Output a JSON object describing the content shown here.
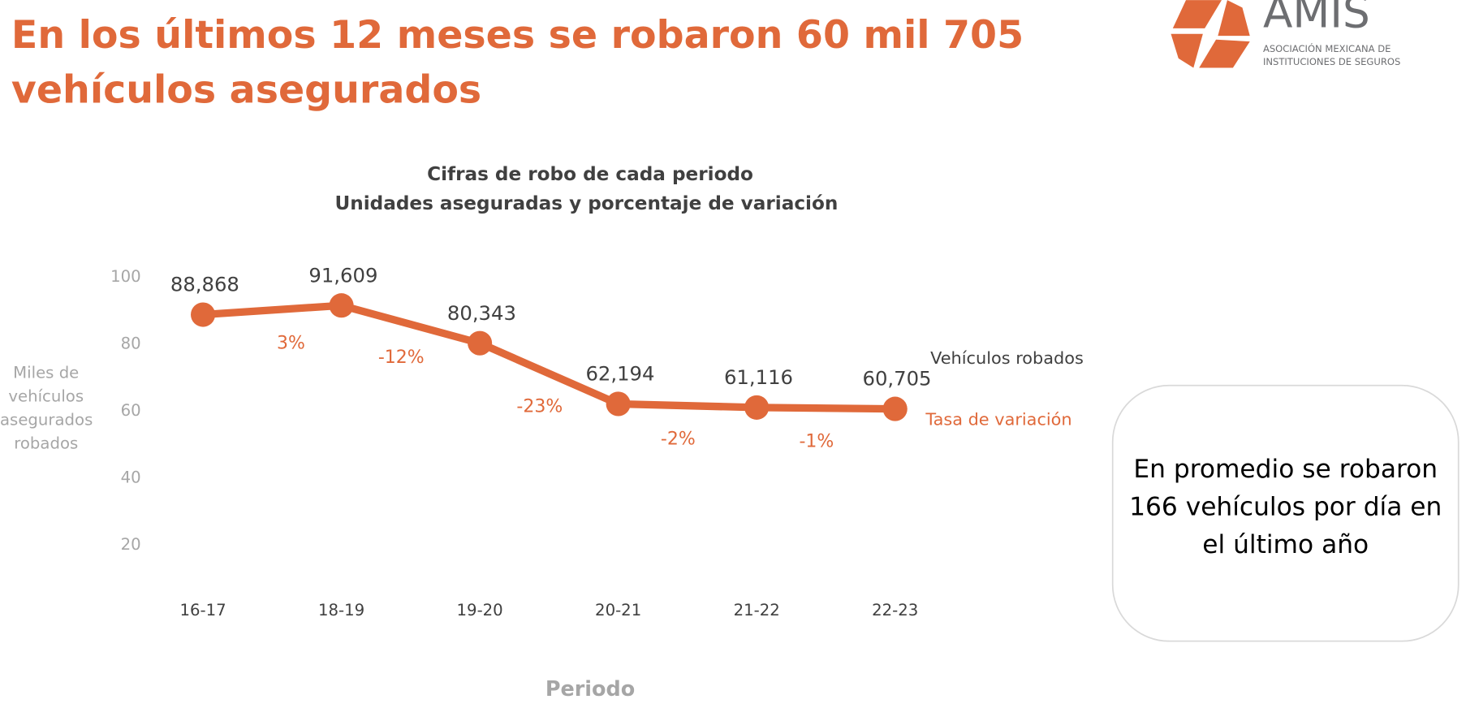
{
  "header": {
    "title": "En los últimos 12 meses se robaron 60 mil 705 vehículos asegurados",
    "logo_name": "AMIS",
    "logo_line1": "ASOCIACIÓN MEXICANA DE",
    "logo_line2": "INSTITUCIONES DE SEGUROS"
  },
  "callout": "En promedio se robaron 166 vehículos por día en el último año",
  "chart_data": {
    "type": "line",
    "title": "Cifras de robo de cada periodo",
    "subtitle": "Unidades aseguradas y porcentaje de variación",
    "x_label": "Periodo",
    "y_label": "Miles de vehículos asegurados robados",
    "categories": [
      "16-17",
      "18-19",
      "19-20",
      "20-21",
      "21-22",
      "22-23"
    ],
    "series": [
      {
        "name": "Vehículos robados",
        "color": "#e0693a",
        "values": [
          88.868,
          91.609,
          80.343,
          62.194,
          61.116,
          60.705
        ],
        "value_labels": [
          "88,868",
          "91,609",
          "80,343",
          "62,194",
          "61,116",
          "60,705"
        ]
      }
    ],
    "variation": {
      "name": "Tasa de variación",
      "color": "#e0693a",
      "values": [
        3,
        -12,
        -23,
        -2,
        -1
      ],
      "value_labels": [
        "3%",
        "-12%",
        "-23%",
        "-2%",
        "-1%"
      ]
    },
    "ylim": [
      0,
      100
    ],
    "yticks": [
      20,
      40,
      60,
      80,
      100
    ],
    "grid": false
  }
}
